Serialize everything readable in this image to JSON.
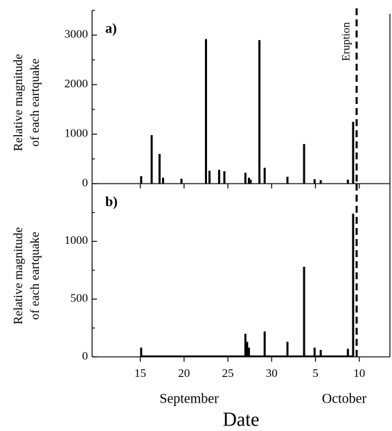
{
  "chart_data": [
    {
      "type": "bar",
      "panel_label": "a)",
      "ylabel": [
        "Relative magnitude",
        "of each eartquake"
      ],
      "x": [
        15.1,
        16.3,
        17.2,
        17.6,
        19.7,
        22.5,
        22.9,
        24.0,
        24.6,
        27.0,
        27.4,
        27.6,
        28.6,
        29.2,
        31.8,
        33.7,
        34.9,
        35.6,
        38.7,
        39.3
      ],
      "values": [
        150,
        980,
        600,
        120,
        100,
        2920,
        260,
        280,
        250,
        220,
        120,
        80,
        2900,
        320,
        140,
        800,
        90,
        70,
        80,
        1250
      ],
      "color": "#000000",
      "xlim": [
        9.5,
        43.5
      ],
      "xticks": [
        15,
        20,
        25,
        30,
        35,
        40
      ],
      "ylim": [
        0,
        3500
      ],
      "yticks": [
        0,
        1000,
        2000,
        3000
      ],
      "yminor_ticks": [
        500,
        1500,
        2500,
        3500
      ],
      "eruption_x": 39.7,
      "annotation": "Eruption"
    },
    {
      "type": "bar",
      "panel_label": "b)",
      "ylabel": [
        "Relative magnitude",
        "of each eartquake"
      ],
      "x": [
        15.1,
        27.0,
        27.2,
        27.4,
        29.2,
        31.8,
        33.7,
        34.9,
        35.6,
        38.7,
        39.3
      ],
      "values": [
        80,
        200,
        130,
        80,
        220,
        130,
        780,
        80,
        60,
        70,
        1240
      ],
      "color": "#000000",
      "xlim": [
        9.5,
        43.5
      ],
      "xticks": [
        15,
        20,
        25,
        30,
        {
          "value": 35,
          "label": "5"
        },
        {
          "value": 40,
          "label": "10"
        }
      ],
      "ylim": [
        0,
        1500
      ],
      "yticks": [
        0,
        500,
        1000
      ],
      "yminor_ticks": [
        250,
        750,
        1250
      ],
      "eruption_x": 39.7,
      "month_labels": [
        "September",
        "October"
      ],
      "xlabel": "Date"
    }
  ]
}
